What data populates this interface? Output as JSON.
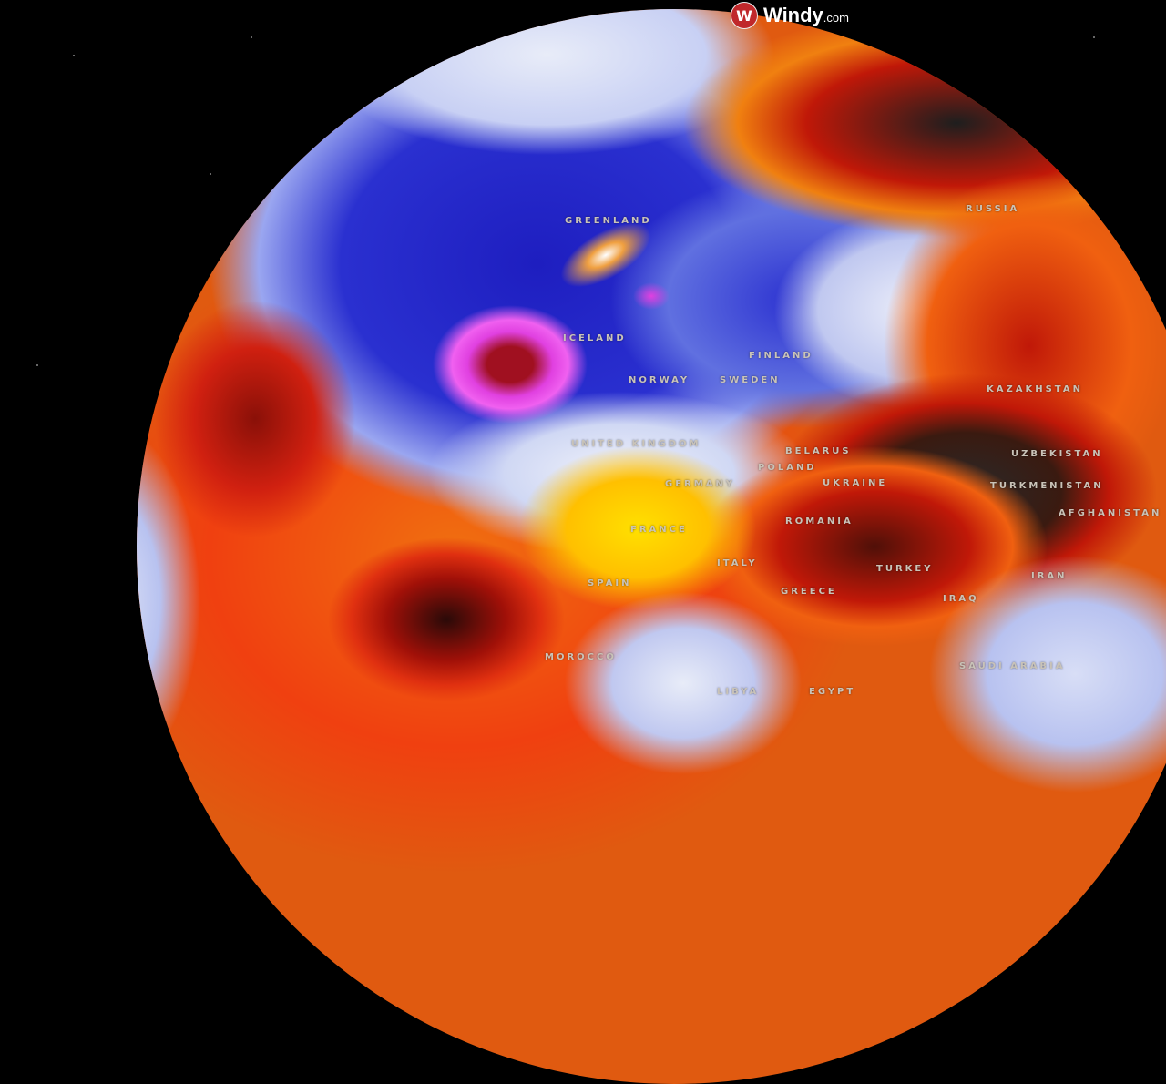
{
  "brand": {
    "name": "Windy",
    "suffix": ".com",
    "logo_glyph": "windy-logo-icon"
  },
  "map": {
    "projection": "globe",
    "layer_colors": {
      "cold": "#1a1fb8",
      "very_cold": "#e040e0",
      "neutral": "#e8ecf8",
      "warm": "#ffd000",
      "hot": "#e02000",
      "very_hot": "#2a2a2a"
    },
    "labels": {
      "greenland": "GREENLAND",
      "iceland": "ICELAND",
      "russia": "RUSSIA",
      "finland": "FINLAND",
      "norway": "NORWAY",
      "sweden": "SWEDEN",
      "united_kingdom": "UNITED KINGDOM",
      "germany": "GERMANY",
      "poland": "POLAND",
      "belarus": "BELARUS",
      "ukraine": "UKRAINE",
      "kazakhstan": "KAZAKHSTAN",
      "uzbekistan": "UZBEKISTAN",
      "turkmenistan": "TURKMENISTAN",
      "afghanistan": "AFGHANISTAN",
      "romania": "ROMANIA",
      "france": "FRANCE",
      "spain": "SPAIN",
      "italy": "ITALY",
      "greece": "GREECE",
      "turkey": "TURKEY",
      "iran": "IRAN",
      "iraq": "IRAQ",
      "saudi_arabia": "SAUDI ARABIA",
      "egypt": "EGYPT",
      "libya": "LIBYA",
      "morocco": "MOROCCO"
    }
  }
}
